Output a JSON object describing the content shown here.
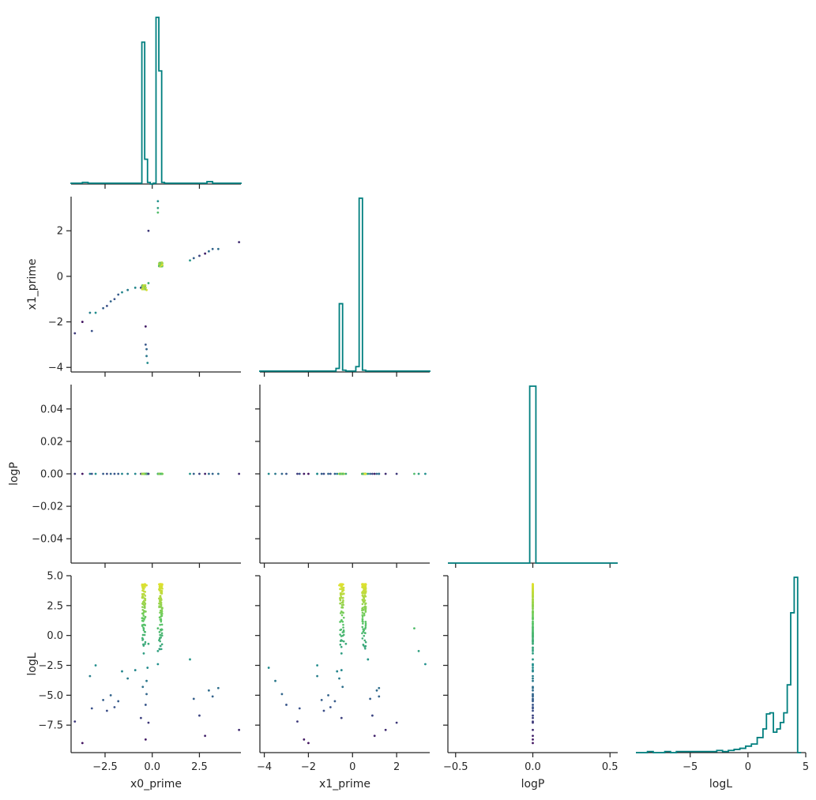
{
  "chart_data": {
    "type": "scatter",
    "subtype": "corner-plot",
    "hist_color": "#007f7f",
    "colormap": "viridis",
    "colormap_stops": [
      "#440154",
      "#3b528b",
      "#21908d",
      "#5dc863",
      "#fde725"
    ],
    "color_by": "logL",
    "grid": false,
    "legend": "none",
    "variables": [
      {
        "name": "x0_prime",
        "label": "x0_prime",
        "range": [
          -4.3,
          4.7
        ],
        "ticks": [
          -2.5,
          0.0,
          2.5
        ],
        "tick_labels": [
          "−2.5",
          "0.0",
          "2.5"
        ]
      },
      {
        "name": "x1_prime",
        "label": "x1_prime",
        "range": [
          -4.2,
          3.5
        ],
        "ticks": [
          -4,
          -2,
          0,
          2
        ],
        "tick_labels": [
          "−4",
          "−2",
          "0",
          "2"
        ]
      },
      {
        "name": "logP",
        "label": "logP",
        "range": [
          -0.055,
          0.055
        ],
        "ticks": [
          -0.04,
          -0.02,
          0.0,
          0.02,
          0.04
        ],
        "tick_labels": [
          "−0.04",
          "−0.02",
          "0.00",
          "0.02",
          "0.04"
        ],
        "x_range": [
          -0.55,
          0.55
        ],
        "x_ticks": [
          -0.5,
          0.0,
          0.5
        ],
        "x_tick_labels": [
          "−0.5",
          "0.0",
          "0.5"
        ]
      },
      {
        "name": "logL",
        "label": "logL",
        "range": [
          -9.8,
          5.0
        ],
        "ticks": [
          -7.5,
          -5.0,
          -2.5,
          0.0,
          2.5,
          5.0
        ],
        "tick_labels": [
          "−7.5",
          "−5.0",
          "−2.5",
          "0.0",
          "2.5",
          "5.0"
        ],
        "x_range": [
          -9.7,
          5.0
        ],
        "x_ticks": [
          -5,
          0,
          5
        ],
        "x_tick_labels": [
          "−5",
          "0",
          "5"
        ]
      }
    ],
    "histograms": {
      "x0_prime": {
        "edges": [
          -4.3,
          -4.0,
          -3.7,
          -3.4,
          -3.1,
          -2.8,
          -2.5,
          -2.2,
          -1.9,
          -1.6,
          -1.3,
          -1.0,
          -0.7,
          -0.55,
          -0.4,
          -0.25,
          -0.1,
          0.05,
          0.2,
          0.35,
          0.5,
          0.65,
          0.8,
          1.1,
          1.4,
          1.7,
          2.0,
          2.3,
          2.6,
          2.9,
          3.2,
          3.5,
          3.8,
          4.1,
          4.4,
          4.7
        ],
        "counts": [
          1,
          1,
          2,
          1,
          1,
          1,
          1,
          1,
          1,
          1,
          1,
          1,
          1,
          183,
          32,
          2,
          0,
          1,
          215,
          146,
          2,
          1,
          1,
          1,
          1,
          1,
          1,
          1,
          1,
          3,
          1,
          1,
          1,
          1,
          1
        ]
      },
      "x1_prime": {
        "edges": [
          -4.2,
          -3.9,
          -3.6,
          -3.3,
          -3.0,
          -2.7,
          -2.4,
          -2.1,
          -1.8,
          -1.5,
          -1.2,
          -0.9,
          -0.75,
          -0.6,
          -0.45,
          -0.3,
          -0.15,
          0.0,
          0.15,
          0.3,
          0.45,
          0.6,
          0.75,
          0.9,
          1.2,
          1.5,
          1.8,
          2.1,
          2.4,
          2.7,
          3.0,
          3.3,
          3.5
        ],
        "counts": [
          1,
          1,
          1,
          1,
          1,
          1,
          1,
          1,
          1,
          1,
          1,
          1,
          4,
          77,
          2,
          1,
          1,
          1,
          6,
          196,
          2,
          1,
          1,
          1,
          1,
          1,
          1,
          1,
          1,
          1,
          1,
          1
        ]
      },
      "logP": {
        "edges": [
          -0.55,
          -0.02,
          0.02,
          0.55
        ],
        "counts": [
          0,
          1,
          0
        ]
      },
      "logL": {
        "edges": [
          -9.7,
          -9.2,
          -8.7,
          -8.2,
          -7.7,
          -7.2,
          -6.7,
          -6.2,
          -5.7,
          -5.2,
          -4.7,
          -4.2,
          -3.7,
          -3.2,
          -2.7,
          -2.2,
          -1.7,
          -1.2,
          -0.7,
          -0.2,
          0.3,
          0.8,
          1.3,
          1.6,
          1.9,
          2.2,
          2.5,
          2.8,
          3.1,
          3.4,
          3.7,
          4.0,
          4.3,
          4.6
        ],
        "counts": [
          0,
          0,
          1,
          0,
          0,
          1,
          0,
          1,
          1,
          1,
          1,
          1,
          1,
          1,
          2,
          1,
          2,
          3,
          4,
          6,
          8,
          14,
          22,
          36,
          37,
          19,
          22,
          28,
          37,
          63,
          130,
          163,
          0
        ]
      }
    },
    "samples": {
      "x0_prime": [
        -4.1,
        -3.7,
        -3.3,
        -3.2,
        -3.0,
        -2.6,
        -2.4,
        -2.2,
        -2.0,
        -1.8,
        -1.6,
        -1.3,
        -0.9,
        -0.6,
        -0.5,
        -0.45,
        -0.4,
        -0.35,
        -0.3,
        -0.2,
        2.0,
        2.2,
        2.5,
        2.8,
        3.0,
        3.2,
        3.5,
        4.6,
        0.3,
        0.3,
        0.3,
        -0.35,
        -0.35,
        -0.3,
        -0.3,
        -0.25,
        -0.2
      ],
      "x1_prime": [
        -2.5,
        -2.0,
        -1.6,
        -2.4,
        -1.6,
        -1.4,
        -1.3,
        -1.1,
        -1.0,
        -0.8,
        -0.7,
        -0.6,
        -0.5,
        -0.5,
        -0.45,
        -0.5,
        -0.4,
        -0.5,
        -0.6,
        -0.3,
        0.7,
        0.8,
        0.9,
        1.0,
        1.1,
        1.2,
        1.2,
        1.5,
        3.3,
        3.0,
        2.8,
        -2.2,
        -3.0,
        -3.2,
        -3.5,
        -3.8,
        2.0
      ],
      "logP": [
        0,
        0,
        0,
        0,
        0,
        0,
        0,
        0,
        0,
        0,
        0,
        0,
        0,
        0,
        0,
        0,
        0,
        0,
        0,
        0,
        0,
        0,
        0,
        0,
        0,
        0,
        0,
        0,
        0,
        0,
        0,
        0,
        0,
        0,
        0,
        0,
        0
      ],
      "logL": [
        -7.2,
        -9.0,
        -3.4,
        -6.1,
        -2.5,
        -5.4,
        -6.3,
        -5.0,
        -6.0,
        -5.5,
        -3.0,
        -3.6,
        -2.9,
        -6.9,
        -4.3,
        -1.5,
        0.3,
        2.0,
        4.2,
        -0.7,
        -2.0,
        -5.3,
        -6.7,
        -8.4,
        -4.6,
        -5.1,
        -4.4,
        -7.9,
        -2.4,
        -1.3,
        0.6,
        -8.7,
        -5.8,
        -4.9,
        -3.8,
        -2.7,
        -7.3
      ]
    }
  }
}
